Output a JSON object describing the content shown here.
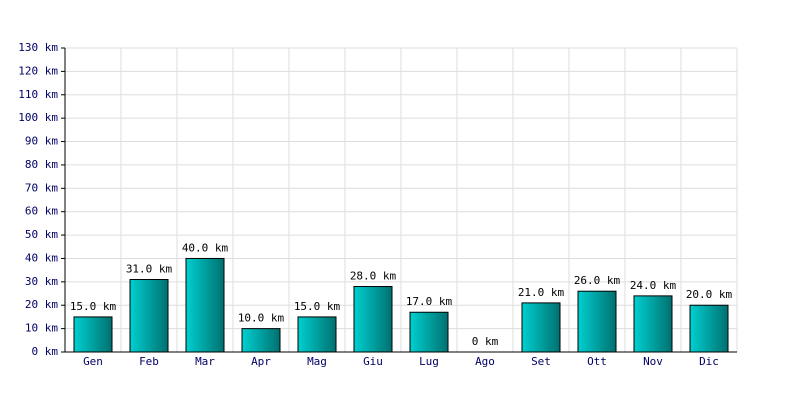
{
  "chart_data": {
    "type": "bar",
    "categories": [
      "Gen",
      "Feb",
      "Mar",
      "Apr",
      "Mag",
      "Giu",
      "Lug",
      "Ago",
      "Set",
      "Ott",
      "Nov",
      "Dic"
    ],
    "values": [
      15,
      31,
      40,
      10,
      15,
      28,
      17,
      0,
      21,
      26,
      24,
      20
    ],
    "value_labels": [
      "15.0 km",
      "31.0 km",
      "40.0 km",
      "10.0 km",
      "15.0 km",
      "28.0 km",
      "17.0 km",
      "0 km",
      "21.0 km",
      "26.0 km",
      "24.0 km",
      "20.0 km"
    ],
    "color": "#00d0d0",
    "ylim": [
      0,
      130
    ],
    "yticks": [
      {
        "value": 0,
        "label": "0 km"
      },
      {
        "value": 10,
        "label": "10 km"
      },
      {
        "value": 20,
        "label": "20 km"
      },
      {
        "value": 30,
        "label": "30 km"
      },
      {
        "value": 40,
        "label": "40 km"
      },
      {
        "value": 50,
        "label": "50 km"
      },
      {
        "value": 60,
        "label": "60 km"
      },
      {
        "value": 70,
        "label": "70 km"
      },
      {
        "value": 80,
        "label": "80 km"
      },
      {
        "value": 90,
        "label": "90 km"
      },
      {
        "value": 100,
        "label": "100 km"
      },
      {
        "value": 110,
        "label": "110 km"
      },
      {
        "value": 120,
        "label": "120 km"
      },
      {
        "value": 130,
        "label": "130 km"
      }
    ],
    "grid": true
  }
}
